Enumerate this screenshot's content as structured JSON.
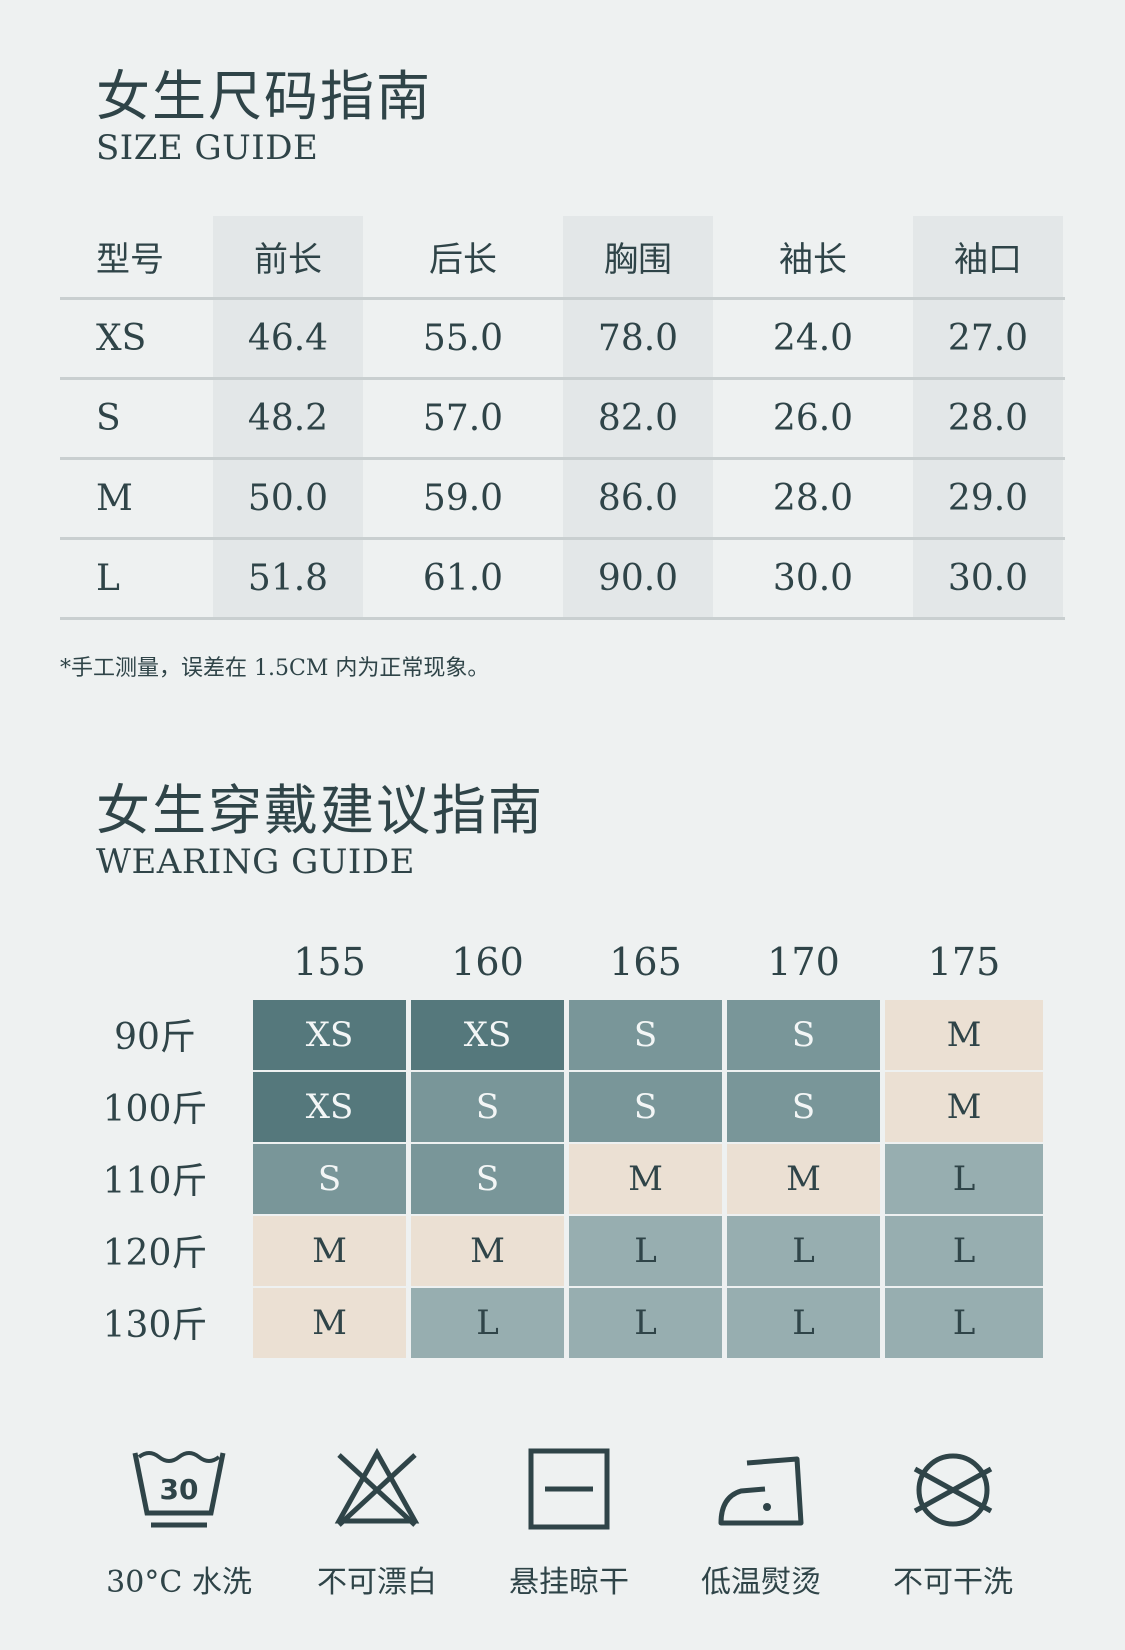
{
  "size_guide": {
    "title": "女生尺码指南",
    "subtitle": "SIZE GUIDE",
    "columns": [
      "型号",
      "前长",
      "后长",
      "胸围",
      "袖长",
      "袖口"
    ],
    "rows": [
      [
        "XS",
        "46.4",
        "55.0",
        "78.0",
        "24.0",
        "27.0"
      ],
      [
        "S",
        "48.2",
        "57.0",
        "82.0",
        "26.0",
        "28.0"
      ],
      [
        "M",
        "50.0",
        "59.0",
        "86.0",
        "28.0",
        "29.0"
      ],
      [
        "L",
        "51.8",
        "61.0",
        "90.0",
        "30.0",
        "30.0"
      ]
    ],
    "note": "*手工测量，误差在 1.5CM 内为正常现象。"
  },
  "wearing_guide": {
    "title": "女生穿戴建议指南",
    "subtitle": "WEARING GUIDE",
    "heights": [
      "155",
      "160",
      "165",
      "170",
      "175"
    ],
    "weights": [
      "90斤",
      "100斤",
      "110斤",
      "120斤",
      "130斤"
    ],
    "grid": [
      [
        "XS",
        "XS",
        "S",
        "S",
        "M"
      ],
      [
        "XS",
        "S",
        "S",
        "S",
        "M"
      ],
      [
        "S",
        "S",
        "M",
        "M",
        "L"
      ],
      [
        "M",
        "M",
        "L",
        "L",
        "L"
      ],
      [
        "M",
        "L",
        "L",
        "L",
        "L"
      ]
    ],
    "colors": {
      "XS": "#55787c",
      "S": "#799699",
      "M": "#ebe0d3",
      "L": "#97aeb0"
    }
  },
  "care": [
    {
      "icon": "wash-30-icon",
      "label": "30°C 水洗",
      "number": "30"
    },
    {
      "icon": "no-bleach-icon",
      "label": "不可漂白"
    },
    {
      "icon": "hang-dry-icon",
      "label": "悬挂晾干"
    },
    {
      "icon": "low-iron-icon",
      "label": "低温熨烫"
    },
    {
      "icon": "no-dry-clean-icon",
      "label": "不可干洗"
    }
  ]
}
